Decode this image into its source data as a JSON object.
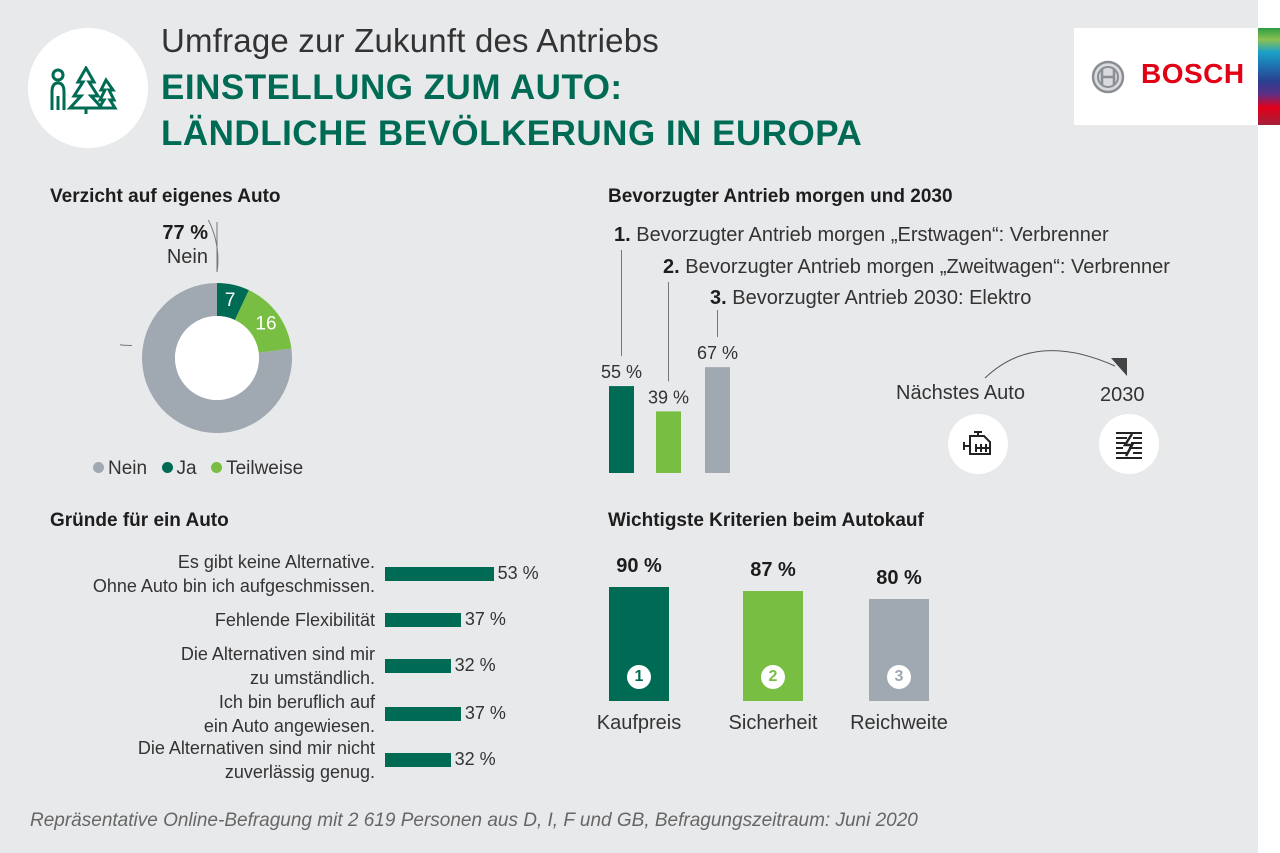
{
  "header": {
    "subtitle": "Umfrage zur Zukunft des Antriebs",
    "title_line1": "EINSTELLUNG ZUM AUTO:",
    "title_line2": "LÄNDLICHE BEVÖLKERUNG IN EUROPA",
    "logo_icon": "person-with-trees-icon",
    "brand": "BOSCH",
    "brand_color": "#e20015",
    "accent_color": "#006b54"
  },
  "colors": {
    "dark_green": "#006b54",
    "light_green": "#78be43",
    "gray": "#a0a8b2"
  },
  "chart_data": [
    {
      "type": "pie",
      "title": "Verzicht auf eigenes Auto",
      "callout": {
        "value": "77 %",
        "label": "Nein"
      },
      "slices": [
        {
          "name": "Nein",
          "value": 77,
          "label": "",
          "color": "#a0a8b2"
        },
        {
          "name": "Ja",
          "value": 7,
          "label": "7",
          "color": "#006b54"
        },
        {
          "name": "Teilweise",
          "value": 16,
          "label": "16",
          "color": "#78be43"
        }
      ],
      "legend": [
        "Nein",
        "Ja",
        "Teilweise"
      ],
      "legend_placement": "bottom",
      "donut": true
    },
    {
      "type": "bar",
      "title": "Bevorzugter Antrieb morgen und 2030",
      "categories": [
        {
          "num": "1.",
          "text": "Bevorzugter Antrieb morgen „Erstwagen“: Verbrenner"
        },
        {
          "num": "2.",
          "text": "Bevorzugter Antrieb morgen „Zweitwagen“: Verbrenner"
        },
        {
          "num": "3.",
          "text": "Bevorzugter Antrieb 2030: Elektro"
        }
      ],
      "values": [
        55,
        39,
        67
      ],
      "value_labels": [
        "55 %",
        "39 %",
        "67 %"
      ],
      "colors": [
        "#006b54",
        "#78be43",
        "#a0a8b2"
      ],
      "ylim": [
        0,
        100
      ],
      "annotation": {
        "from_label": "Nächstes Auto",
        "from_icon": "combustion-engine-icon",
        "to_label": "2030",
        "to_icon": "electric-battery-icon"
      }
    },
    {
      "type": "bar",
      "orientation": "horizontal",
      "title": "Gründe für ein Auto",
      "categories": [
        [
          "Es gibt keine Alternative.",
          "Ohne Auto bin ich aufgeschmissen."
        ],
        [
          "Fehlende Flexibilität"
        ],
        [
          "Die Alternativen sind mir",
          "zu umständlich."
        ],
        [
          "Ich bin beruflich auf",
          "ein Auto angewiesen."
        ],
        [
          "Die Alternativen  sind mir nicht",
          "zuverlässig genug."
        ]
      ],
      "values": [
        53,
        37,
        32,
        37,
        32
      ],
      "value_labels": [
        "53 %",
        "37 %",
        "32 %",
        "37 %",
        "32 %"
      ],
      "xlim": [
        0,
        100
      ]
    },
    {
      "type": "bar",
      "title": "Wichtigste Kriterien beim Autokauf",
      "categories": [
        "Kaufpreis",
        "Sicherheit",
        "Reichweite"
      ],
      "values": [
        90,
        87,
        80
      ],
      "value_labels": [
        "90 %",
        "87 %",
        "80 %"
      ],
      "ranks": [
        "1",
        "2",
        "3"
      ],
      "colors": [
        "#006b54",
        "#78be43",
        "#a0a8b2"
      ],
      "ylim": [
        0,
        100
      ]
    }
  ],
  "footnote": "Repräsentative Online-Befragung mit 2 619 Personen aus D, I, F und GB, Befragungszeitraum: Juni 2020"
}
